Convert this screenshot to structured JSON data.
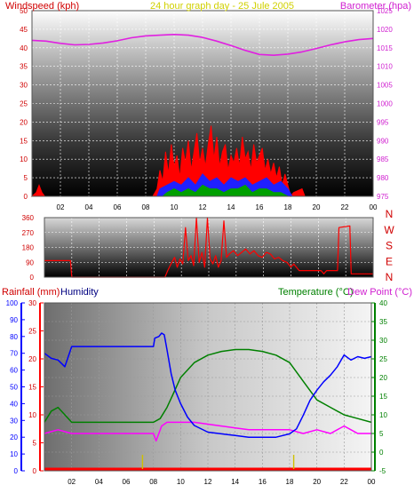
{
  "chart_data": [
    {
      "type": "line",
      "panel": "wind-and-pressure",
      "title": "24 hour graph day - 25 Jule 2005",
      "ylabel_left": "Windspeed (kph)",
      "ylabel_right": "Barometer (hpa)",
      "xlabel": "",
      "x_ticks": [
        "02",
        "04",
        "06",
        "08",
        "10",
        "12",
        "14",
        "16",
        "18",
        "20",
        "22",
        "00"
      ],
      "y_left_ticks": [
        "0",
        "5",
        "10",
        "15",
        "20",
        "25",
        "30",
        "35",
        "40",
        "45",
        "50"
      ],
      "y_right_ticks": [
        "975",
        "980",
        "985",
        "990",
        "995",
        "1000",
        "1005",
        "1010",
        "1015",
        "1020",
        "1025"
      ],
      "xlim": [
        0,
        24
      ],
      "ylim_left": [
        0,
        50
      ],
      "ylim_right": [
        975,
        1025
      ],
      "grid": true,
      "series": [
        {
          "name": "Barometer (hpa)",
          "color": "#e020e0",
          "axis": "right",
          "x": [
            0,
            1,
            2,
            3,
            4,
            5,
            6,
            7,
            8,
            9,
            10,
            11,
            12,
            13,
            14,
            15,
            16,
            17,
            18,
            19,
            20,
            21,
            22,
            23,
            24
          ],
          "values": [
            1017,
            1016.8,
            1016.2,
            1015.8,
            1015.9,
            1016.3,
            1016.9,
            1017.7,
            1018.2,
            1018.4,
            1018.6,
            1018.4,
            1017.8,
            1016.8,
            1015.6,
            1014.3,
            1013.2,
            1013,
            1013.3,
            1013.9,
            1014.8,
            1015.8,
            1016.6,
            1017.2,
            1017.5
          ]
        },
        {
          "name": "Wind gust",
          "color": "#ff0000",
          "axis": "left",
          "x": [
            0,
            0.3,
            0.5,
            0.7,
            0.9,
            1.1,
            8.5,
            8.8,
            9.0,
            9.2,
            9.4,
            9.6,
            9.8,
            10.0,
            10.2,
            10.4,
            10.6,
            10.8,
            11.0,
            11.2,
            11.4,
            11.6,
            11.8,
            12.0,
            12.2,
            12.4,
            12.6,
            12.8,
            13.0,
            13.2,
            13.4,
            13.6,
            13.8,
            14.0,
            14.2,
            14.4,
            14.6,
            14.8,
            15.0,
            15.2,
            15.4,
            15.6,
            15.8,
            16.0,
            16.2,
            16.4,
            16.6,
            16.8,
            17.0,
            17.2,
            17.4,
            17.6,
            17.8,
            18.0,
            18.2,
            18.4,
            19.0,
            19.2,
            24
          ],
          "values": [
            0,
            1,
            3,
            1,
            0,
            0,
            0,
            2,
            7,
            4,
            12,
            6,
            14,
            8,
            11,
            5,
            13,
            9,
            15,
            7,
            12,
            17,
            9,
            13,
            8,
            14,
            19,
            10,
            16,
            8,
            12,
            14,
            7,
            11,
            9,
            13,
            8,
            16,
            10,
            12,
            7,
            14,
            9,
            11,
            13,
            7,
            10,
            6,
            9,
            5,
            8,
            3,
            6,
            3,
            0,
            1,
            2,
            0,
            0
          ]
        },
        {
          "name": "Wind average",
          "color": "#2020ff",
          "axis": "left",
          "x": [
            8.8,
            9.0,
            9.5,
            10,
            10.5,
            11,
            11.5,
            12,
            12.5,
            13,
            13.5,
            14,
            14.5,
            15,
            15.5,
            16,
            16.5,
            17,
            17.5,
            18,
            18.3
          ],
          "values": [
            0,
            2,
            3,
            4,
            3,
            5,
            3,
            6,
            4,
            5,
            3,
            5,
            4,
            5,
            3,
            4,
            5,
            3,
            4,
            2,
            0
          ]
        },
        {
          "name": "Wind low",
          "color": "#00a000",
          "axis": "left",
          "x": [
            9.2,
            9.5,
            10,
            10.5,
            11,
            11.5,
            12,
            12.5,
            13,
            13.5,
            14,
            14.5,
            15,
            15.5,
            16,
            16.5,
            17,
            17.5,
            18
          ],
          "values": [
            0,
            1,
            2,
            1,
            2,
            1,
            3,
            2,
            2,
            1,
            2,
            2,
            3,
            1,
            2,
            2,
            1,
            1,
            0
          ]
        }
      ]
    },
    {
      "type": "line",
      "panel": "wind-direction",
      "xlabel": "",
      "ylabel_right": "N W S E N",
      "x_ticks": [],
      "y_ticks": [
        "0",
        "90",
        "180",
        "270",
        "360"
      ],
      "compass_labels": [
        "N",
        "W",
        "S",
        "E",
        "N"
      ],
      "xlim": [
        0,
        24
      ],
      "ylim": [
        0,
        360
      ],
      "grid": true,
      "series": [
        {
          "name": "Wind direction",
          "color": "#ff0000",
          "x": [
            0,
            1.9,
            2.0,
            8.8,
            9.0,
            9.3,
            9.5,
            9.7,
            9.9,
            10.1,
            10.3,
            10.5,
            10.7,
            10.9,
            11.1,
            11.3,
            11.5,
            11.7,
            11.9,
            12.1,
            12.3,
            12.5,
            12.7,
            12.9,
            13.1,
            13.3,
            13.5,
            13.8,
            14.1,
            14.4,
            14.7,
            15.0,
            15.3,
            15.6,
            15.9,
            16.2,
            16.5,
            16.8,
            17.1,
            17.4,
            17.7,
            18.0,
            18.2,
            18.6,
            19.5,
            20.2,
            20.4,
            20.6,
            21.4,
            21.5,
            22.3,
            22.4,
            24
          ],
          "values": [
            100,
            100,
            0,
            0,
            40,
            90,
            120,
            60,
            110,
            80,
            300,
            100,
            130,
            70,
            360,
            90,
            150,
            60,
            360,
            110,
            80,
            130,
            60,
            100,
            340,
            120,
            140,
            160,
            130,
            150,
            170,
            140,
            160,
            130,
            120,
            150,
            140,
            110,
            120,
            100,
            90,
            60,
            80,
            40,
            40,
            40,
            20,
            40,
            40,
            300,
            310,
            20,
            20
          ]
        }
      ]
    },
    {
      "type": "line",
      "panel": "temperature-humidity-rain",
      "ylabel_left_outer": "Rainfall (mm)",
      "ylabel_left_inner": "Humidity",
      "ylabel_right_inner": "Temperature (°C)",
      "ylabel_right_outer": "Dew Point (°C)",
      "x_ticks": [
        "02",
        "04",
        "06",
        "08",
        "10",
        "12",
        "14",
        "16",
        "18",
        "20",
        "22",
        "00"
      ],
      "y_humidity_ticks": [
        "0",
        "10",
        "20",
        "30",
        "40",
        "50",
        "60",
        "70",
        "80",
        "90",
        "100"
      ],
      "y_rain_ticks": [
        "0",
        "5",
        "10",
        "15",
        "20",
        "25",
        "30"
      ],
      "y_temp_ticks": [
        "-5",
        "0",
        "5",
        "10",
        "15",
        "20",
        "25",
        "30",
        "35",
        "40"
      ],
      "xlim": [
        0,
        24
      ],
      "ylim_humidity": [
        0,
        100
      ],
      "ylim_rain": [
        0,
        30
      ],
      "ylim_temp": [
        -5,
        40
      ],
      "grid": true,
      "series": [
        {
          "name": "Humidity",
          "color": "#0000ff",
          "axis": "humidity",
          "x": [
            0,
            0.5,
            1,
            1.5,
            2,
            8,
            8.1,
            8.4,
            8.6,
            8.8,
            9.0,
            9.3,
            9.6,
            10,
            10.5,
            11,
            12,
            13,
            14,
            15,
            16,
            17,
            18,
            18.5,
            19,
            19.5,
            20,
            20.5,
            21,
            21.5,
            22,
            22.5,
            23,
            23.5,
            24
          ],
          "values": [
            70,
            67,
            66,
            62,
            74,
            74,
            79,
            80,
            82,
            81,
            72,
            58,
            48,
            40,
            32,
            27,
            23,
            22,
            21,
            20,
            20,
            20,
            22,
            25,
            33,
            42,
            48,
            53,
            57,
            62,
            69,
            66,
            68,
            67,
            68
          ]
        },
        {
          "name": "Temperature (°C)",
          "color": "#008000",
          "axis": "temp",
          "x": [
            0,
            0.5,
            1,
            1.5,
            2,
            3,
            4,
            5,
            6,
            7,
            8,
            8.5,
            9,
            9.5,
            10,
            11,
            12,
            13,
            14,
            15,
            16,
            17,
            18,
            19,
            20,
            21,
            22,
            23,
            24
          ],
          "values": [
            8,
            11,
            12,
            10,
            8,
            8,
            8,
            8,
            8,
            8,
            8,
            9,
            12,
            16,
            20,
            24,
            26,
            27,
            27.5,
            27.5,
            27,
            26,
            24,
            19,
            14,
            12,
            10,
            9,
            8
          ]
        },
        {
          "name": "Dew Point (°C)",
          "color": "#ff00ff",
          "axis": "temp",
          "x": [
            0,
            1,
            2,
            3,
            4,
            5,
            6,
            7,
            8,
            8.2,
            8.6,
            9,
            10,
            11,
            12,
            13,
            14,
            15,
            16,
            17,
            18,
            19,
            20,
            21,
            22,
            22.5,
            23,
            24
          ],
          "values": [
            5,
            6,
            5,
            5,
            5,
            5,
            5,
            5,
            5,
            3,
            7,
            8,
            8,
            8,
            7.5,
            7,
            6.5,
            6,
            6,
            6,
            6,
            5,
            6,
            5,
            7,
            6,
            5,
            5
          ]
        },
        {
          "name": "Rainfall (mm)",
          "color": "#ff0000",
          "axis": "rain",
          "x": [
            0,
            24
          ],
          "values": [
            0,
            0
          ]
        }
      ]
    }
  ],
  "colors": {
    "windspeed_label": "#d00000",
    "barometer": "#d020d0",
    "title": "#d0d000",
    "humidity_label": "#000080",
    "temperature_label": "#008000",
    "dewpoint_label": "#d020d0",
    "rain_axis": "#ff0000",
    "humidity_axis": "#0000ff",
    "temp_axis": "#008000",
    "direction_labels": "#d00000"
  }
}
